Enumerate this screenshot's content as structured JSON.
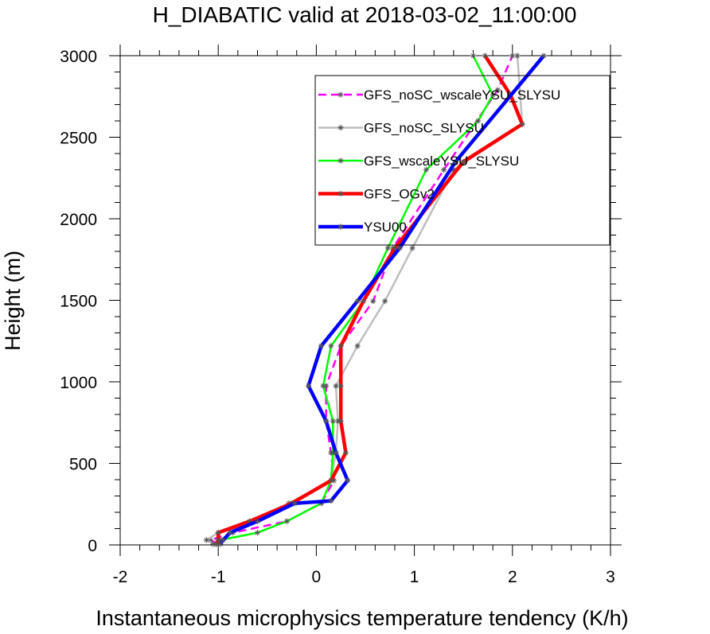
{
  "chart_data": {
    "type": "line",
    "title": "H_DIABATIC valid at 2018-03-02_11:00:00",
    "xlabel": "Instantaneous microphysics temperature tendency (K/h)",
    "ylabel": "Height (m)",
    "xlim": [
      -2,
      3
    ],
    "ylim": [
      0,
      3000
    ],
    "xticks": [
      -2,
      -1,
      0,
      1,
      2,
      3
    ],
    "yticks": [
      0,
      500,
      1000,
      1500,
      2000,
      2500,
      3000
    ],
    "grid": false,
    "legend_position": "top-right",
    "series": [
      {
        "name": "GFS_noSC_wscaleYSU_SLYSU",
        "color": "#ff00ff",
        "dashed": true,
        "width": 2.5,
        "points": [
          [
            -1.0,
            5
          ],
          [
            -1.08,
            30
          ],
          [
            -0.85,
            75
          ],
          [
            -0.3,
            145
          ],
          [
            0.05,
            255
          ],
          [
            0.18,
            395
          ],
          [
            0.15,
            565
          ],
          [
            0.1,
            760
          ],
          [
            0.1,
            975
          ],
          [
            0.25,
            1220
          ],
          [
            0.58,
            1495
          ],
          [
            0.78,
            1820
          ],
          [
            1.3,
            2300
          ],
          [
            1.85,
            2790
          ],
          [
            2.0,
            3000
          ]
        ]
      },
      {
        "name": "GFS_noSC_SLYSU",
        "color": "#bebebe",
        "dashed": false,
        "width": 2.5,
        "points": [
          [
            -1.05,
            5
          ],
          [
            -1.12,
            30
          ],
          [
            -1.0,
            75
          ],
          [
            -0.65,
            145
          ],
          [
            -0.28,
            255
          ],
          [
            0.15,
            395
          ],
          [
            0.2,
            565
          ],
          [
            0.22,
            760
          ],
          [
            0.2,
            975
          ],
          [
            0.42,
            1220
          ],
          [
            0.7,
            1495
          ],
          [
            0.98,
            1820
          ],
          [
            1.4,
            2300
          ],
          [
            2.1,
            2580
          ],
          [
            2.05,
            3000
          ]
        ]
      },
      {
        "name": "GFS_wscaleYSU_SLYSU",
        "color": "#00ff00",
        "dashed": false,
        "width": 2.5,
        "points": [
          [
            -1.02,
            5
          ],
          [
            -0.98,
            30
          ],
          [
            -0.6,
            75
          ],
          [
            -0.3,
            145
          ],
          [
            0.05,
            255
          ],
          [
            0.15,
            395
          ],
          [
            0.17,
            565
          ],
          [
            0.17,
            760
          ],
          [
            0.07,
            975
          ],
          [
            0.15,
            1220
          ],
          [
            0.48,
            1495
          ],
          [
            0.73,
            1820
          ],
          [
            1.12,
            2300
          ],
          [
            1.65,
            2600
          ],
          [
            1.8,
            2760
          ],
          [
            1.6,
            3000
          ]
        ]
      },
      {
        "name": "GFS_OGv2",
        "color": "#ff0000",
        "dashed": false,
        "width": 4.5,
        "points": [
          [
            -1.02,
            5
          ],
          [
            -1.0,
            30
          ],
          [
            -1.0,
            75
          ],
          [
            -0.68,
            145
          ],
          [
            -0.25,
            255
          ],
          [
            0.15,
            395
          ],
          [
            0.3,
            565
          ],
          [
            0.25,
            760
          ],
          [
            0.25,
            975
          ],
          [
            0.25,
            1220
          ],
          [
            0.48,
            1495
          ],
          [
            0.8,
            1820
          ],
          [
            1.5,
            2350
          ],
          [
            2.1,
            2580
          ],
          [
            1.98,
            2760
          ],
          [
            1.72,
            3000
          ]
        ]
      },
      {
        "name": "YSU00",
        "color": "#0000ff",
        "dashed": false,
        "width": 4.5,
        "points": [
          [
            -0.98,
            5
          ],
          [
            -0.95,
            30
          ],
          [
            -0.88,
            75
          ],
          [
            -0.6,
            145
          ],
          [
            -0.22,
            255
          ],
          [
            0.15,
            270
          ],
          [
            0.32,
            395
          ],
          [
            0.2,
            565
          ],
          [
            0.1,
            760
          ],
          [
            -0.08,
            975
          ],
          [
            0.05,
            1220
          ],
          [
            0.42,
            1495
          ],
          [
            0.85,
            1820
          ],
          [
            1.42,
            2350
          ],
          [
            2.32,
            3000
          ]
        ]
      }
    ]
  }
}
